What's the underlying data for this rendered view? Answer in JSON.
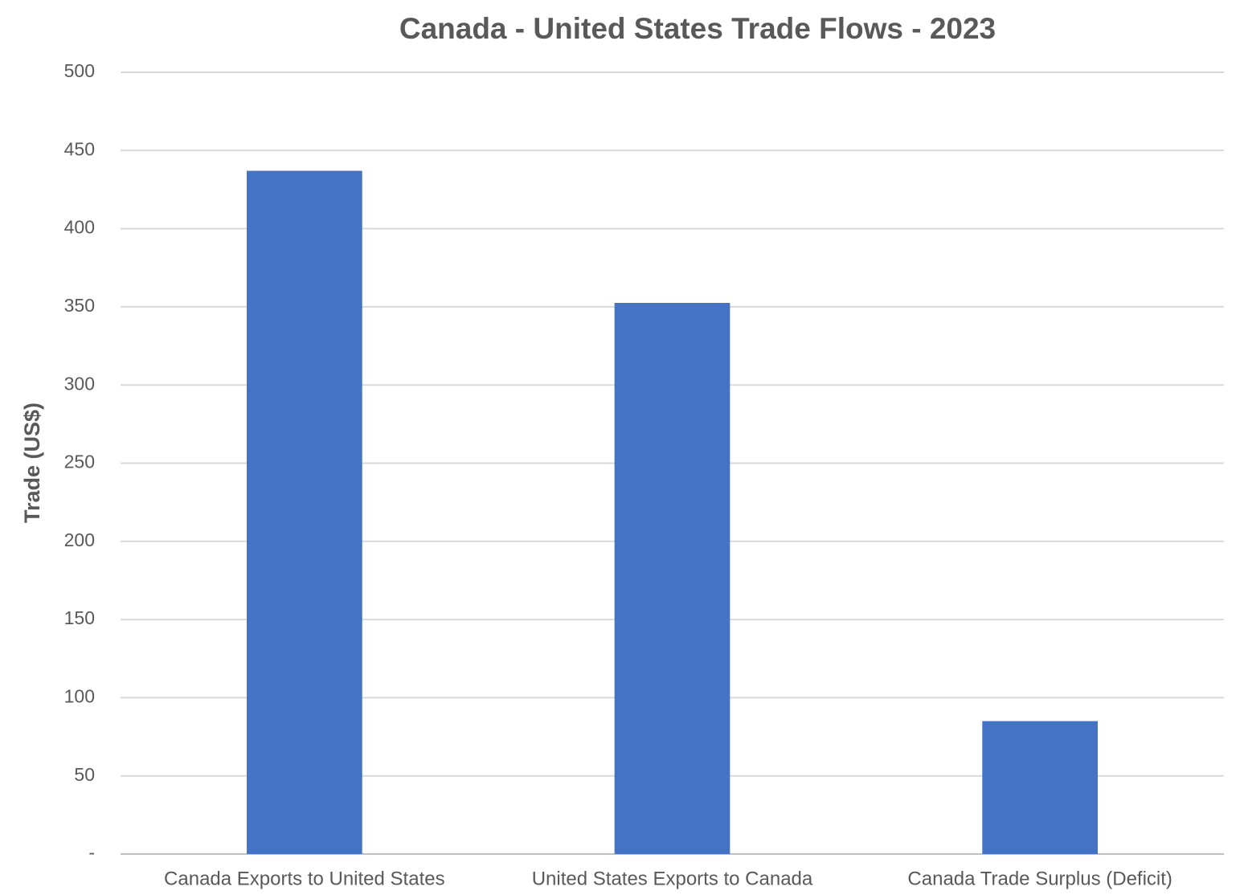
{
  "chart_data": {
    "type": "bar",
    "title": "Canada - United States Trade Flows - 2023",
    "y_label": "Trade (US$)",
    "categories": [
      "Canada Exports to United States",
      "United States Exports to Canada",
      "Canada Trade Surplus (Deficit)"
    ],
    "values": [
      437,
      352.5,
      85
    ],
    "color": "#4472c4",
    "ylim": [
      0,
      500
    ],
    "yticks": [
      {
        "value": 0,
        "label": "-"
      },
      50,
      100,
      150,
      200,
      250,
      300,
      350,
      400,
      450,
      500
    ],
    "grid": true
  }
}
